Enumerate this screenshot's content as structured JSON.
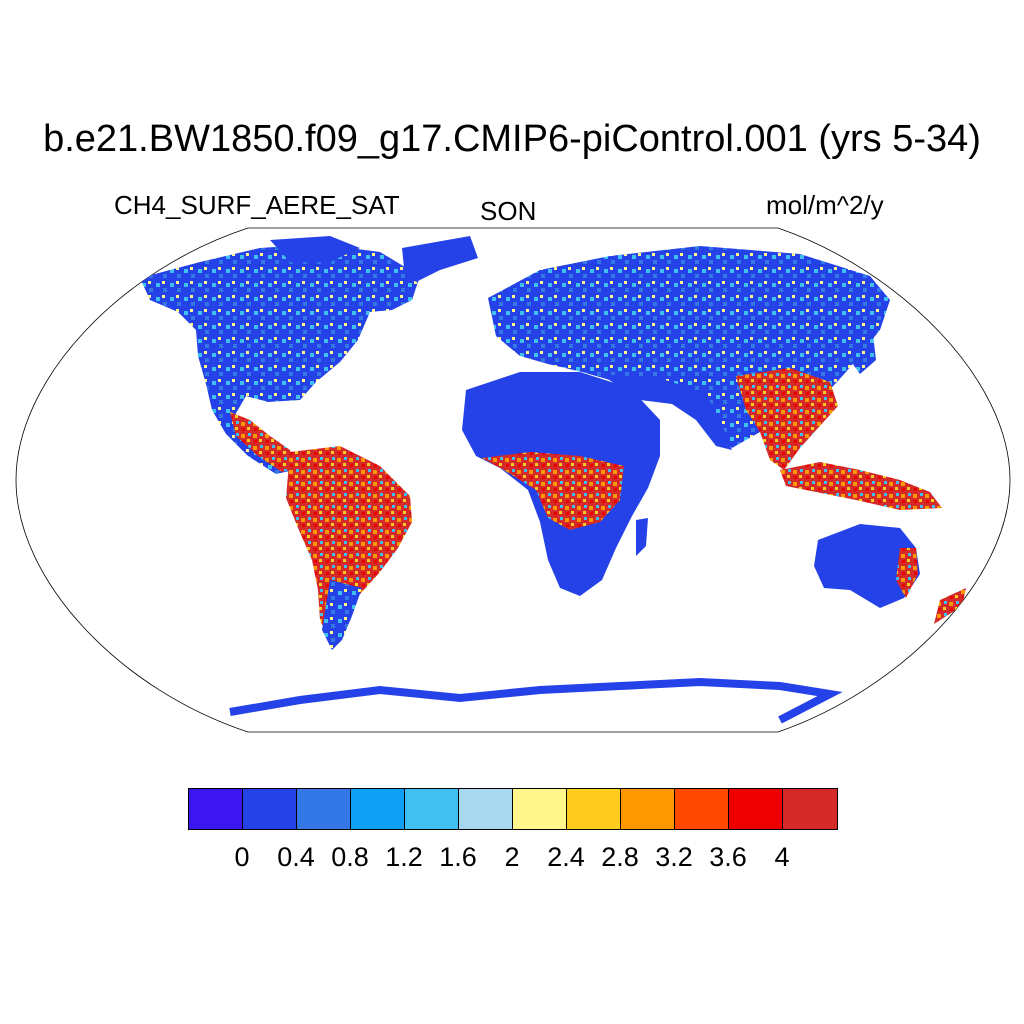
{
  "header": {
    "title": "b.e21.BW1850.f09_g17.CMIP6-piControl.001 (yrs 5-34)",
    "variable": "CH4_SURF_AERE_SAT",
    "season": "SON",
    "units": "mol/m^2/y"
  },
  "map": {
    "projection": "Robinson",
    "description_regions": [
      {
        "region": "tropical-south-america",
        "level": "high"
      },
      {
        "region": "central-africa",
        "level": "high"
      },
      {
        "region": "south-east-asia",
        "level": "high"
      },
      {
        "region": "maritime-continent",
        "level": "high"
      },
      {
        "region": "high-latitudes",
        "level": "low-to-moderate"
      },
      {
        "region": "deserts",
        "level": "low"
      }
    ]
  },
  "colorbar": {
    "colors": [
      "#3c16f0",
      "#2442e8",
      "#3478e8",
      "#10a0f8",
      "#40c0f0",
      "#a8d8f0",
      "#fff68c",
      "#ffcc20",
      "#ff9800",
      "#ff4800",
      "#ee0000",
      "#d42a2a"
    ],
    "labels": [
      "0",
      "0.4",
      "0.8",
      "1.2",
      "1.6",
      "2",
      "2.4",
      "2.8",
      "3.2",
      "3.6",
      "4"
    ]
  }
}
